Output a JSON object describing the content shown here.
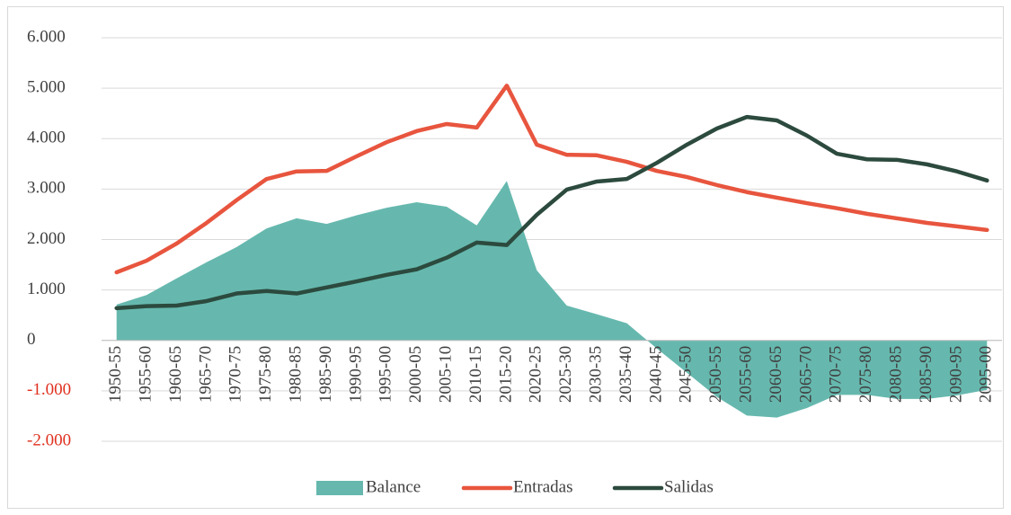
{
  "chart_data": {
    "type": "line_area",
    "categories": [
      "1950-55",
      "1955-60",
      "1960-65",
      "1965-70",
      "1970-75",
      "1975-80",
      "1980-85",
      "1985-90",
      "1990-95",
      "1995-00",
      "2000-05",
      "2005-10",
      "2010-15",
      "2015-20",
      "2020-25",
      "2025-30",
      "2030-35",
      "2035-40",
      "2040-45",
      "2045-50",
      "2050-55",
      "2055-60",
      "2060-65",
      "2065-70",
      "2070-75",
      "2075-80",
      "2080-85",
      "2085-90",
      "2090-95",
      "2095-00"
    ],
    "series": [
      {
        "name": "Balance",
        "kind": "area",
        "color": "#66b8ae",
        "values": [
          710,
          900,
          1230,
          1550,
          1850,
          2220,
          2420,
          2310,
          2480,
          2630,
          2740,
          2650,
          2280,
          3160,
          1390,
          690,
          520,
          340,
          -160,
          -640,
          -1120,
          -1490,
          -1530,
          -1340,
          -1080,
          -1080,
          -1160,
          -1160,
          -1090,
          -980
        ]
      },
      {
        "name": "Entradas",
        "kind": "line",
        "color": "#e8553e",
        "values": [
          1350,
          1580,
          1920,
          2330,
          2780,
          3200,
          3350,
          3360,
          3650,
          3930,
          4150,
          4290,
          4220,
          5050,
          3880,
          3680,
          3670,
          3540,
          3360,
          3240,
          3080,
          2940,
          2830,
          2720,
          2620,
          2510,
          2420,
          2330,
          2260,
          2190
        ]
      },
      {
        "name": "Salidas",
        "kind": "line",
        "color": "#2c4a3e",
        "values": [
          640,
          680,
          690,
          780,
          930,
          980,
          930,
          1050,
          1170,
          1300,
          1410,
          1640,
          1940,
          1890,
          2490,
          2990,
          3150,
          3200,
          3520,
          3880,
          4200,
          4430,
          4360,
          4060,
          3700,
          3590,
          3580,
          3490,
          3350,
          3170
        ]
      }
    ],
    "ylim": [
      -2000,
      6000
    ],
    "yticks": [
      {
        "value": -2000,
        "label": "-2.000"
      },
      {
        "value": -1000,
        "label": "-1.000"
      },
      0,
      {
        "value": 1000,
        "label": "1.000"
      },
      {
        "value": 2000,
        "label": "2.000"
      },
      {
        "value": 3000,
        "label": "3.000"
      },
      {
        "value": 4000,
        "label": "4.000"
      },
      {
        "value": 5000,
        "label": "5.000"
      },
      {
        "value": 6000,
        "label": "6.000"
      }
    ],
    "negative_tick_color": "#e0301e",
    "grid": true,
    "legend": "bottom"
  }
}
